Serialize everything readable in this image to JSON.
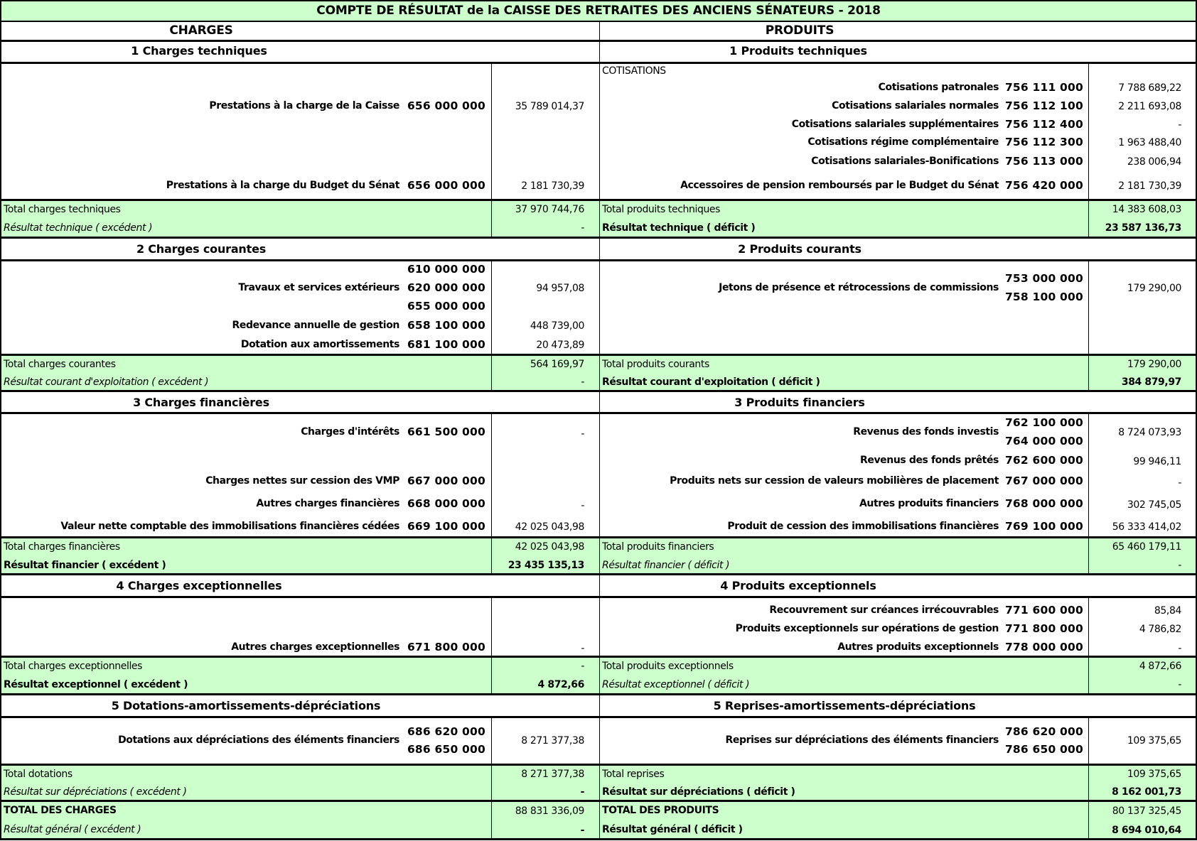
{
  "title": "COMPTE DE RÉSULTAT de la CAISSE DES RETRAITES DES ANCIENS SÉNATEURS - 2018",
  "colors": {
    "total_row_bg": "#ccffcc",
    "border": "#000000"
  },
  "headers": {
    "charges": "CHARGES",
    "produits": "PRODUITS"
  },
  "s1": {
    "charges_title": "1 Charges techniques",
    "produits_title": "1 Produits techniques",
    "charges": [
      {
        "label": "Prestations à la charge de la Caisse",
        "code": "656 000 000",
        "amount": "35 789 014,37"
      },
      {
        "label": "Prestations à la charge du Budget du Sénat",
        "code": "656 000 000",
        "amount": "2 181 730,39"
      }
    ],
    "produits_group": "COTISATIONS",
    "produits": [
      {
        "label": "Cotisations patronales",
        "code": "756 111 000",
        "amount": "7 788 689,22"
      },
      {
        "label": "Cotisations salariales normales",
        "code": "756 112 100",
        "amount": "2 211 693,08"
      },
      {
        "label": "Cotisations salariales supplémentaires",
        "code": "756 112 400",
        "amount": "-"
      },
      {
        "label": "Cotisations régime complémentaire",
        "code": "756 112 300",
        "amount": "1 963 488,40"
      },
      {
        "label": "Cotisations salariales-Bonifications",
        "code": "756 113 000",
        "amount": "238 006,94"
      },
      {
        "label": "Accessoires de pension remboursés par le Budget du Sénat",
        "code": "756 420 000",
        "amount": "2 181 730,39"
      }
    ],
    "total_charges": {
      "label": "Total charges techniques",
      "amount": "37 970 744,76"
    },
    "result_charges": {
      "label": "Résultat technique ( excédent )",
      "amount": "-"
    },
    "total_produits": {
      "label": "Total produits techniques",
      "amount": "14 383 608,03"
    },
    "result_produits": {
      "label": "Résultat technique ( déficit )",
      "amount": "23 587 136,73"
    }
  },
  "s2": {
    "charges_title": "2 Charges courantes",
    "produits_title": "2 Produits courants",
    "charges": [
      {
        "label": "Travaux et services extérieurs",
        "codes": [
          "610 000 000",
          "620 000 000",
          "655 000 000"
        ],
        "amount": "94 957,08"
      },
      {
        "label": "Redevance annuelle de gestion",
        "code": "658 100 000",
        "amount": "448 739,00"
      },
      {
        "label": "Dotation aux amortissements",
        "code": "681 100 000",
        "amount": "20 473,89"
      }
    ],
    "produits": [
      {
        "label": "Jetons de présence et rétrocessions de commissions",
        "codes": [
          "753 000 000",
          "758 100 000"
        ],
        "amount": "179 290,00"
      }
    ],
    "total_charges": {
      "label": "Total charges courantes",
      "amount": "564 169,97"
    },
    "result_charges": {
      "label": "Résultat courant d'exploitation ( excédent )",
      "amount": "-"
    },
    "total_produits": {
      "label": "Total produits courants",
      "amount": "179 290,00"
    },
    "result_produits": {
      "label": "Résultat courant d'exploitation ( déficit )",
      "amount": "384 879,97"
    }
  },
  "s3": {
    "charges_title": "3 Charges financières",
    "produits_title": "3 Produits financiers",
    "charges": [
      {
        "label": "Charges d'intérêts",
        "code": "661 500 000",
        "amount": "-"
      },
      {
        "label": "Charges nettes sur cession des VMP",
        "code": "667 000 000",
        "amount": ""
      },
      {
        "label": "Autres charges financières",
        "code": "668 000 000",
        "amount": "-"
      },
      {
        "label": "Valeur nette comptable des immobilisations financières cédées",
        "code": "669 100 000",
        "amount": "42 025 043,98"
      }
    ],
    "produits": [
      {
        "label": "Revenus des fonds investis",
        "codes": [
          "762 100 000",
          "764 000 000"
        ],
        "amount": "8 724 073,93"
      },
      {
        "label": "Revenus des fonds prêtés",
        "code": "762 600 000",
        "amount": "99 946,11"
      },
      {
        "label": "Produits nets sur cession de valeurs mobilières de placement",
        "code": "767 000 000",
        "amount": "-"
      },
      {
        "label": "Autres produits financiers",
        "code": "768 000 000",
        "amount": "302 745,05"
      },
      {
        "label": "Produit de cession des immobilisations financières",
        "code": "769 100 000",
        "amount": "56 333 414,02"
      }
    ],
    "total_charges": {
      "label": "Total charges financières",
      "amount": "42 025 043,98"
    },
    "result_charges": {
      "label": "Résultat financier ( excédent )",
      "amount": "23 435 135,13"
    },
    "total_produits": {
      "label": "Total produits financiers",
      "amount": "65 460 179,11"
    },
    "result_produits": {
      "label": "Résultat financier ( déficit )",
      "amount": "-"
    }
  },
  "s4": {
    "charges_title": "4 Charges exceptionnelles",
    "produits_title": "4 Produits exceptionnels",
    "charges": [
      {
        "label": "Autres charges exceptionnelles",
        "code": "671 800 000",
        "amount": "-"
      }
    ],
    "produits": [
      {
        "label": "Recouvrement sur créances irrécouvrables",
        "code": "771 600 000",
        "amount": "85,84"
      },
      {
        "label": "Produits exceptionnels sur opérations de gestion",
        "code": "771 800 000",
        "amount": "4 786,82"
      },
      {
        "label": "Autres produits exceptionnels",
        "code": "778 000 000",
        "amount": "-"
      }
    ],
    "total_charges": {
      "label": "Total charges exceptionnelles",
      "amount": "-"
    },
    "result_charges": {
      "label": "Résultat exceptionnel ( excédent )",
      "amount": "4 872,66"
    },
    "total_produits": {
      "label": "Total produits exceptionnels",
      "amount": "4 872,66"
    },
    "result_produits": {
      "label": "Résultat exceptionnel ( déficit )",
      "amount": "-"
    }
  },
  "s5": {
    "charges_title": "5 Dotations-amortissements-dépréciations",
    "produits_title": "5 Reprises-amortissements-dépréciations",
    "charges": [
      {
        "label": "Dotations aux dépréciations des éléments financiers",
        "codes": [
          "686 620 000",
          "686 650 000"
        ],
        "amount": "8 271 377,38"
      }
    ],
    "produits": [
      {
        "label": "Reprises sur dépréciations des éléments financiers",
        "codes": [
          "786 620 000",
          "786 650 000"
        ],
        "amount": "109 375,65"
      }
    ],
    "total_charges": {
      "label": "Total dotations",
      "amount": "8 271 377,38"
    },
    "result_charges": {
      "label": "Résultat sur dépréciations ( excédent )",
      "amount": "-"
    },
    "total_produits": {
      "label": "Total reprises",
      "amount": "109 375,65"
    },
    "result_produits": {
      "label": "Résultat sur dépréciations ( déficit )",
      "amount": "8 162 001,73"
    }
  },
  "totals": {
    "total_charges": {
      "label": "TOTAL DES CHARGES",
      "amount": "88 831 336,09"
    },
    "result_charges": {
      "label": "Résultat général ( excédent )",
      "amount": "-"
    },
    "total_produits": {
      "label": "TOTAL DES PRODUITS",
      "amount": "80 137 325,45"
    },
    "result_produits": {
      "label": "Résultat général ( déficit )",
      "amount": "8 694 010,64"
    }
  }
}
